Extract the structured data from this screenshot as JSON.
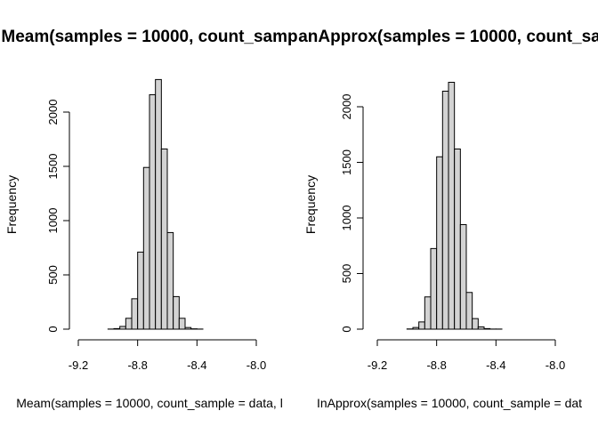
{
  "chart_data": [
    {
      "type": "bar",
      "title": "Meam(samples = 10000, count_samp",
      "xlabel": "Meam(samples = 10000, count_sample = data, l",
      "ylabel": "Frequency",
      "xlim": [
        -9.2,
        -8.0
      ],
      "ylim": [
        0,
        2000
      ],
      "x_ticks": [
        "-9.2",
        "-8.8",
        "-8.4",
        "-8.0"
      ],
      "y_ticks": [
        "0",
        "500",
        "1000",
        "1500",
        "2000"
      ],
      "bin_width": 0.04,
      "bins_start": [
        -9.0,
        -8.96,
        -8.92,
        -8.88,
        -8.84,
        -8.8,
        -8.76,
        -8.72,
        -8.68,
        -8.64,
        -8.6,
        -8.56,
        -8.52,
        -8.48,
        -8.44,
        -8.4
      ],
      "values": [
        1,
        5,
        25,
        100,
        280,
        710,
        1490,
        2160,
        2300,
        1660,
        890,
        300,
        100,
        15,
        3,
        1
      ]
    },
    {
      "type": "bar",
      "title": "anApprox(samples = 10000, count_sa",
      "xlabel": "InApprox(samples = 10000, count_sample = dat",
      "ylabel": "Frequency",
      "xlim": [
        -9.2,
        -8.0
      ],
      "ylim": [
        0,
        2000
      ],
      "x_ticks": [
        "-9.2",
        "-8.8",
        "-8.4",
        "-8.0"
      ],
      "y_ticks": [
        "0",
        "500",
        "1000",
        "1500",
        "2000"
      ],
      "bin_width": 0.04,
      "bins_start": [
        -9.0,
        -8.96,
        -8.92,
        -8.88,
        -8.84,
        -8.8,
        -8.76,
        -8.72,
        -8.68,
        -8.64,
        -8.6,
        -8.56,
        -8.52,
        -8.48,
        -8.44,
        -8.4
      ],
      "values": [
        2,
        15,
        65,
        290,
        725,
        1550,
        2140,
        2220,
        1620,
        940,
        330,
        95,
        20,
        5,
        1,
        1
      ]
    }
  ]
}
